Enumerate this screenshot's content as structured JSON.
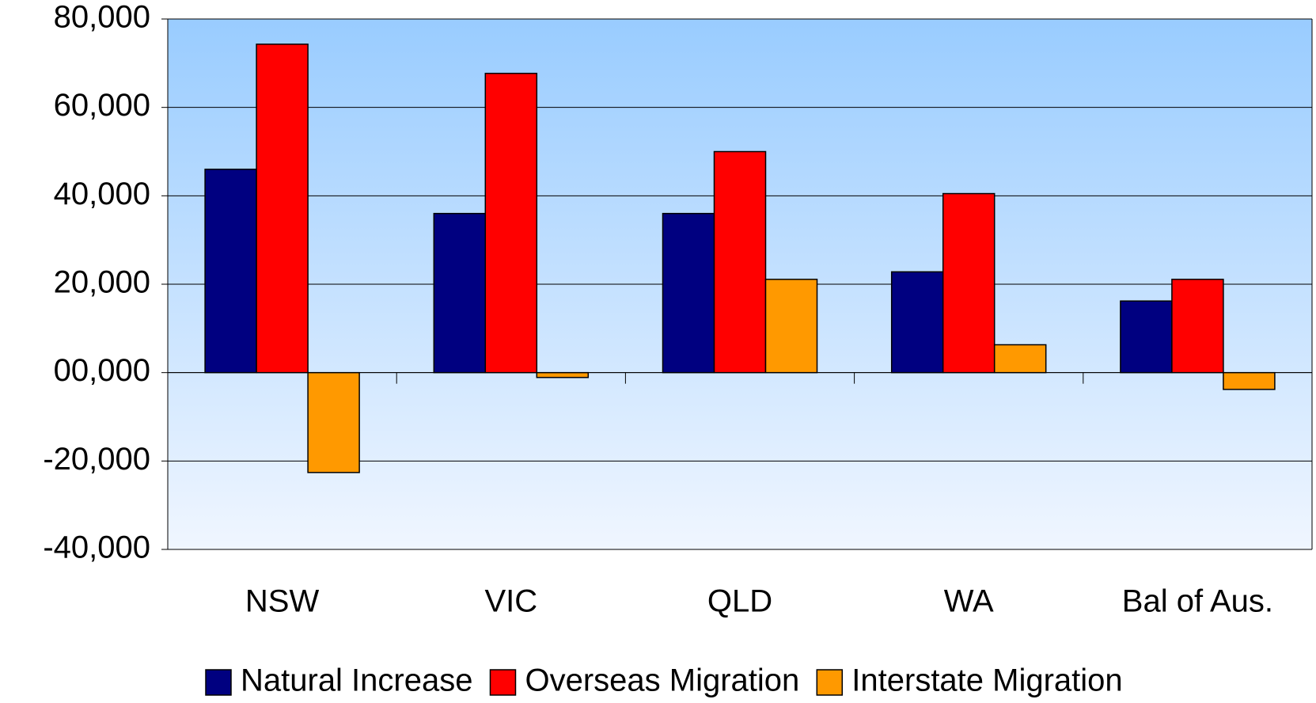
{
  "chart_data": {
    "type": "bar",
    "categories": [
      "NSW",
      "VIC",
      "QLD",
      "WA",
      "Bal of Aus."
    ],
    "series": [
      {
        "name": "Natural Increase",
        "color": "#000080",
        "values": [
          46000,
          36000,
          36000,
          22800,
          16200
        ]
      },
      {
        "name": "Overseas Migration",
        "color": "#ff0000",
        "values": [
          74300,
          67700,
          50000,
          40500,
          21100
        ]
      },
      {
        "name": "Interstate Migration",
        "color": "#ff9900",
        "values": [
          -22600,
          -1100,
          21100,
          6300,
          -3800
        ]
      }
    ],
    "ylim": [
      -40000,
      80000
    ],
    "yticks": [
      {
        "value": -40000,
        "label": "-40,000"
      },
      {
        "value": -20000,
        "label": "-20,000"
      },
      {
        "value": 0,
        "label": "00,000"
      },
      {
        "value": 20000,
        "label": "20,000"
      },
      {
        "value": 40000,
        "label": "40,000"
      },
      {
        "value": 60000,
        "label": "60,000"
      },
      {
        "value": 80000,
        "label": "80,000"
      }
    ],
    "grid": true,
    "legend": "bottom"
  }
}
